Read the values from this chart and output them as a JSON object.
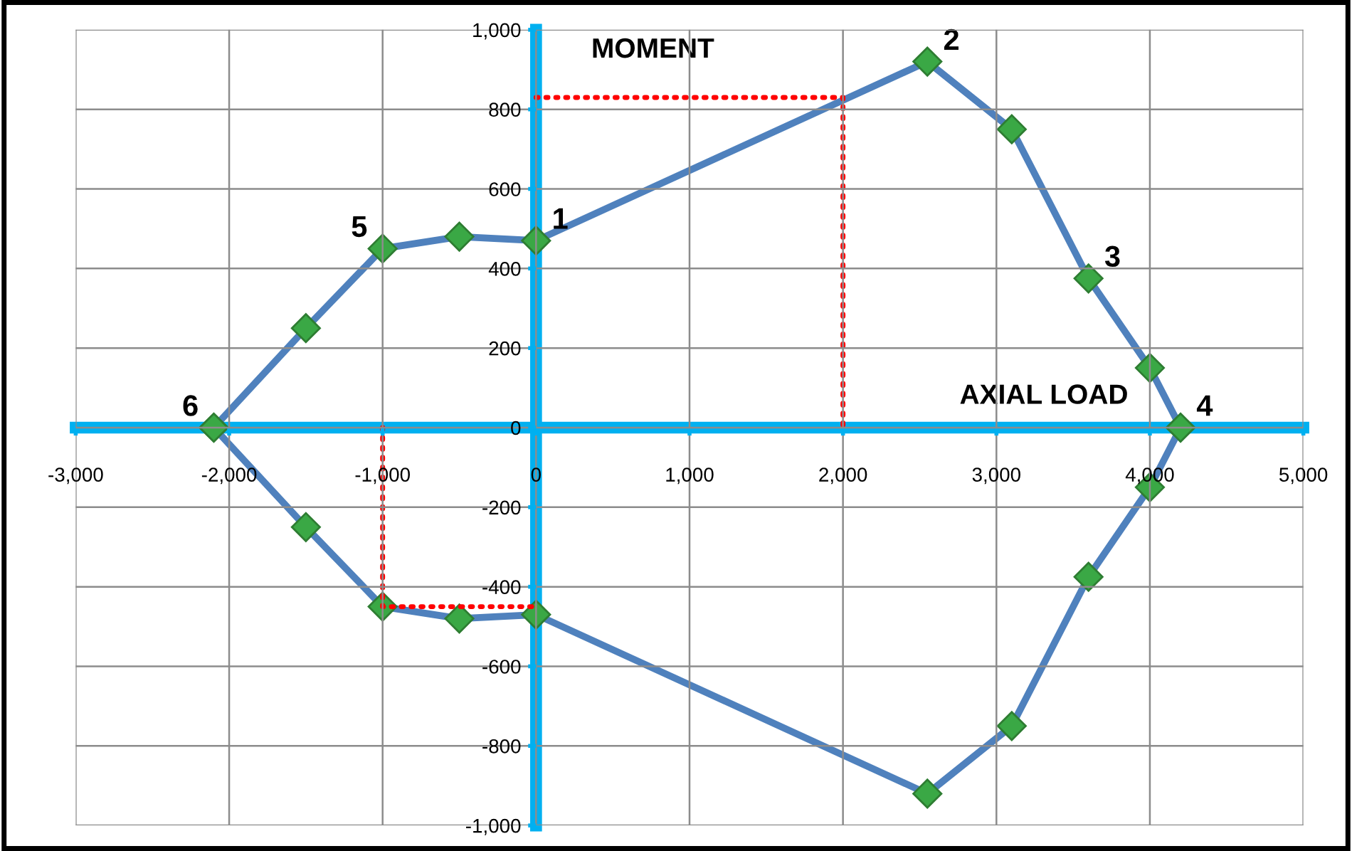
{
  "chart_data": {
    "type": "line",
    "xlabel": "AXIAL LOAD",
    "ylabel": "MOMENT",
    "xlim": [
      -3000,
      5000
    ],
    "ylim": [
      -1000,
      1000
    ],
    "xticks": [
      {
        "value": -3000,
        "label": "-3,000"
      },
      {
        "value": -2000,
        "label": "-2,000"
      },
      {
        "value": -1000,
        "label": "-1,000"
      },
      0,
      {
        "value": 1000,
        "label": "1,000"
      },
      {
        "value": 2000,
        "label": "2,000"
      },
      {
        "value": 3000,
        "label": "3,000"
      },
      {
        "value": 4000,
        "label": "4,000"
      },
      {
        "value": 5000,
        "label": "5,000"
      }
    ],
    "yticks": [
      {
        "value": -1000,
        "label": "-1,000"
      },
      -800,
      -600,
      -400,
      -200,
      0,
      200,
      400,
      600,
      800,
      {
        "value": 1000,
        "label": "1,000"
      }
    ],
    "grid": true,
    "series": [
      {
        "color": "#4f81bd",
        "marker": "diamond",
        "x": [
          -2100,
          -1500,
          -1000,
          -500,
          0,
          2550,
          3100,
          3600,
          4000,
          4200
        ],
        "values": [
          0,
          250,
          450,
          480,
          470,
          920,
          750,
          375,
          150,
          0
        ]
      },
      {
        "color": "#4f81bd",
        "marker": "diamond",
        "x": [
          -2100,
          -1500,
          -1000,
          -500,
          0,
          2550,
          3100,
          3600,
          4000,
          4200
        ],
        "values": [
          0,
          -250,
          -450,
          -480,
          -470,
          -920,
          -750,
          -375,
          -150,
          0
        ]
      },
      {
        "color": "#ff0000",
        "marker": "none",
        "line_style": "dotted",
        "x": [
          0,
          2000,
          2000
        ],
        "values": [
          830,
          830,
          0
        ]
      },
      {
        "color": "#ff0000",
        "marker": "none",
        "line_style": "dotted",
        "x": [
          -1000,
          -1000,
          0
        ],
        "values": [
          0,
          -450,
          -450
        ]
      }
    ],
    "annotations": [
      {
        "text": "1",
        "x": 0,
        "y": 470
      },
      {
        "text": "2",
        "x": 2550,
        "y": 920
      },
      {
        "text": "3",
        "x": 3600,
        "y": 375
      },
      {
        "text": "4",
        "x": 4200,
        "y": 0
      },
      {
        "text": "5",
        "x": -1000,
        "y": 450
      },
      {
        "text": "6",
        "x": -2100,
        "y": 0
      }
    ]
  }
}
